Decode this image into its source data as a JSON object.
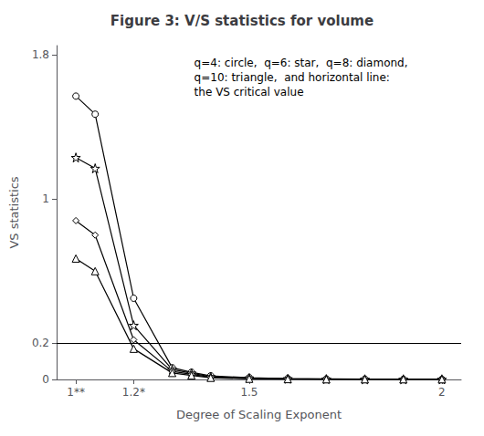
{
  "chart_data": {
    "type": "line",
    "title": "Figure 3: V/S statistics for volume",
    "xlabel": "Degree of Scaling Exponent",
    "ylabel": "VS statistics",
    "x": [
      1.05,
      1.1,
      1.2,
      1.3,
      1.35,
      1.4,
      1.5,
      1.6,
      1.7,
      1.8,
      1.9,
      2.0
    ],
    "xlim": [
      1.0,
      2.05
    ],
    "ylim": [
      0.0,
      1.85
    ],
    "xticks": [
      {
        "value": 1.05,
        "label": "1**"
      },
      {
        "value": 1.2,
        "label": "1.2*"
      },
      1.5,
      2.0
    ],
    "yticks": [
      0,
      0.2,
      1.0,
      1.8
    ],
    "color": "#000000",
    "series": [
      {
        "marker": "circle",
        "values": [
          1.57,
          1.47,
          0.45,
          0.065,
          0.04,
          0.02,
          0.01,
          0.005,
          0.003,
          0.002,
          0.001,
          0.001
        ]
      },
      {
        "marker": "star",
        "values": [
          1.23,
          1.17,
          0.3,
          0.055,
          0.035,
          0.015,
          0.008,
          0.004,
          0.002,
          0.001,
          0.001,
          0.001
        ]
      },
      {
        "marker": "diamond",
        "values": [
          0.88,
          0.8,
          0.22,
          0.045,
          0.028,
          0.012,
          0.006,
          0.003,
          0.002,
          0.001,
          0.001,
          0.001
        ]
      },
      {
        "marker": "triangle",
        "values": [
          0.67,
          0.6,
          0.17,
          0.036,
          0.022,
          0.009,
          0.004,
          0.002,
          0.001,
          0.001,
          0.001,
          0.001
        ]
      }
    ],
    "critical_value": 0.2,
    "annotation": "q=4: circle,  q=6: star,  q=8: diamond,\nq=10: triangle,  and horizontal line:\nthe VS critical value",
    "grid": false
  }
}
